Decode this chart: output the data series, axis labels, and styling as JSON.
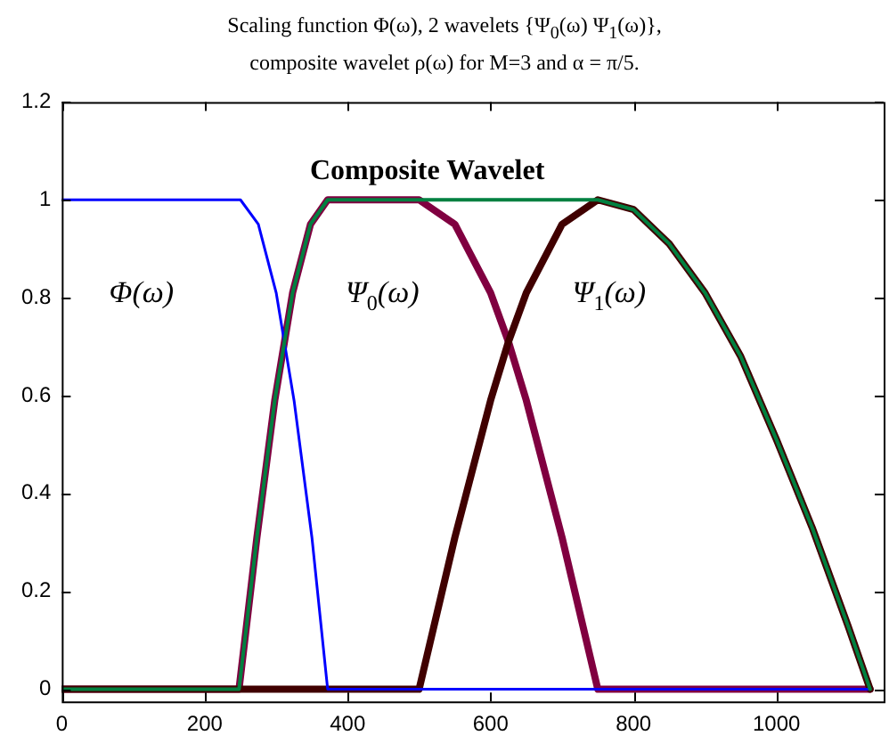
{
  "chart_data": {
    "type": "line",
    "title": "Scaling function Φ(ω), 2 wavelets {Ψ$_{0}$(ω)  Ψ$_{1}$(ω)},",
    "subtitle": "composite wavelet ρ(ω) for M=3 and α = π/5.",
    "xlim": [
      0,
      1150
    ],
    "xticks": [
      0,
      200,
      400,
      600,
      800,
      1000
    ],
    "ylim": [
      -0.025,
      1.2
    ],
    "yticks": [
      0,
      0.2,
      0.4,
      0.6,
      0.8,
      1,
      1.2
    ],
    "grid": false,
    "legend": false,
    "marker": "none",
    "line_style": "solid",
    "series": [
      {
        "name": "Φ(ω)",
        "color": "#0000ff",
        "x": [
          0,
          250,
          275,
          300,
          325,
          350,
          372,
          1131
        ],
        "values": [
          1,
          1,
          0.95,
          0.81,
          0.59,
          0.31,
          0,
          0
        ]
      },
      {
        "name": "Ψ$_{0}$(ω)",
        "color": "#800040",
        "x": [
          0,
          248,
          273,
          298,
          323,
          348,
          372,
          500,
          550,
          600,
          625,
          650,
          700,
          750,
          1131
        ],
        "values": [
          0,
          0,
          0.31,
          0.59,
          0.81,
          0.95,
          1,
          1,
          0.95,
          0.81,
          0.71,
          0.59,
          0.31,
          0,
          0
        ]
      },
      {
        "name": "Ψ$_{1}$(ω)",
        "color": "#400000",
        "x": [
          0,
          500,
          550,
          600,
          625,
          650,
          700,
          750,
          800,
          850,
          900,
          950,
          1000,
          1050,
          1100,
          1131
        ],
        "values": [
          0,
          0,
          0.31,
          0.59,
          0.71,
          0.81,
          0.95,
          1,
          0.98,
          0.91,
          0.81,
          0.68,
          0.51,
          0.33,
          0.13,
          0
        ]
      },
      {
        "name": "Composite Wavelet",
        "color": "#008040",
        "x": [
          0,
          248,
          273,
          298,
          323,
          348,
          372,
          750,
          800,
          850,
          900,
          950,
          1000,
          1050,
          1100,
          1131
        ],
        "values": [
          0,
          0,
          0.31,
          0.59,
          0.81,
          0.95,
          1,
          1,
          0.98,
          0.91,
          0.81,
          0.68,
          0.51,
          0.33,
          0.13,
          0
        ]
      }
    ]
  }
}
